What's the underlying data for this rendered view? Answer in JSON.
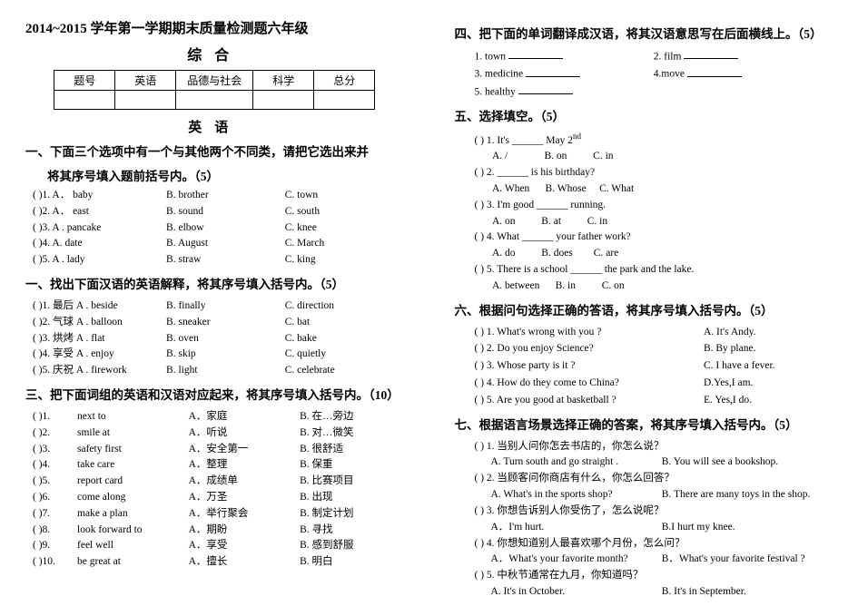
{
  "header": {
    "main_title": "2014~2015 学年第一学期期末质量检测题六年级",
    "subtitle": "综合",
    "english_title": "英语"
  },
  "score_table": {
    "headers": [
      "题号",
      "英语",
      "品德与社会",
      "科学",
      "总分"
    ]
  },
  "sec1": {
    "head_line1": "一、下面三个选项中有一个与其他两个不同类，请把它选出来并",
    "head_line2": "将其序号填入题前括号内。（5）",
    "rows": [
      {
        "n": "( )1.",
        "a": "A． baby",
        "b": "B. brother",
        "c": "C. town"
      },
      {
        "n": "( )2.",
        "a": "A． east",
        "b": "B. sound",
        "c": "C. south"
      },
      {
        "n": "( )3.",
        "a": "A . pancake",
        "b": "B. elbow",
        "c": "C. knee"
      },
      {
        "n": "( )4.",
        "a": "A. date",
        "b": "B. August",
        "c": "C. March"
      },
      {
        "n": "( )5.",
        "a": "A . lady",
        "b": "B. straw",
        "c": "C. king"
      }
    ]
  },
  "sec2": {
    "head": "一、找出下面汉语的英语解释，将其序号填入括号内。（5）",
    "rows": [
      {
        "n": "( )1.",
        "zh": "最后",
        "a": "A . beside",
        "b": "B. finally",
        "c": "C. direction"
      },
      {
        "n": "( )2.",
        "zh": "气球",
        "a": "A . balloon",
        "b": "B. sneaker",
        "c": "C. bat"
      },
      {
        "n": "( )3.",
        "zh": "烘烤",
        "a": "A . flat",
        "b": "B. oven",
        "c": "C. bake"
      },
      {
        "n": "( )4.",
        "zh": "享受",
        "a": "A . enjoy",
        "b": "B. skip",
        "c": "C. quietly"
      },
      {
        "n": "( )5.",
        "zh": "庆祝",
        "a": "A . firework",
        "b": "B. light",
        "c": "C. celebrate"
      }
    ]
  },
  "sec3": {
    "head": "三、把下面词组的英语和汉语对应起来，将其序号填入括号内。（10）",
    "rows": [
      {
        "n": "( )1.",
        "en": "next to",
        "a": "A．家庭",
        "b": "B. 在…旁边"
      },
      {
        "n": "( )2.",
        "en": "smile at",
        "a": "A．听说",
        "b": "B. 对…微笑"
      },
      {
        "n": "( )3.",
        "en": "safety first",
        "a": "A．安全第一",
        "b": "B. 很舒适"
      },
      {
        "n": "( )4.",
        "en": "take care",
        "a": "A．整理",
        "b": "B. 保重"
      },
      {
        "n": "( )5.",
        "en": "report  card",
        "a": "A．成绩单",
        "b": "B. 比赛项目"
      },
      {
        "n": "( )6.",
        "en": "come along",
        "a": "A．万圣",
        "b": "B. 出现"
      },
      {
        "n": "( )7.",
        "en": "make  a  plan",
        "a": "A．举行聚会",
        "b": "B. 制定计划"
      },
      {
        "n": "( )8.",
        "en": "look forward to",
        "a": "A．期盼",
        "b": "B. 寻找"
      },
      {
        "n": "( )9.",
        "en": "feel  well",
        "a": "A．享受",
        "b": "B. 感到舒服"
      },
      {
        "n": "( )10.",
        "en": "be great at",
        "a": "A．擅长",
        "b": "B. 明白"
      }
    ]
  },
  "sec4": {
    "head": "四、把下面的单词翻译成汉语，将其汉语意思写在后面横线上。（5）",
    "rows": [
      {
        "l": "1. town",
        "r": "2. film"
      },
      {
        "l": "3. medicine",
        "r": "4.move"
      },
      {
        "l": "5. healthy",
        "r": ""
      }
    ]
  },
  "sec5": {
    "head": "五、选择填空。（5）",
    "items": [
      {
        "q": "(    ) 1. It's ______ May 2",
        "sup": "nd",
        "opts": "       A. /              B. on          C. in"
      },
      {
        "q": "(    ) 2. ______ is his birthday?",
        "opts": "       A. When      B. Whose     C. What"
      },
      {
        "q": "(    ) 3. I'm good ______ running.",
        "opts": "       A. on          B. at          C. in"
      },
      {
        "q": "(    ) 4. What ______ your father work?",
        "opts": "       A. do          B. does        C. are"
      },
      {
        "q": "(    ) 5. There is a school ______ the park and the lake.",
        "opts": "       A. between      B. in          C. on"
      }
    ]
  },
  "sec6": {
    "head": "六、根据问句选择正确的答语，将其序号填入括号内。（5）",
    "rows": [
      {
        "q": "(    ) 1. What's  wrong with you ?",
        "a": "A. It's Andy."
      },
      {
        "q": "(    ) 2. Do you enjoy Science?",
        "a": "B. By plane."
      },
      {
        "q": "(    ) 3. Whose party is it ?",
        "a": "C. I have a fever."
      },
      {
        "q": "(    ) 4. How do they come to China?",
        "a": "D.Yes,I am."
      },
      {
        "q": "(    ) 5. Are you good at basketball ?",
        "a": "E. Yes,I do."
      }
    ]
  },
  "sec7": {
    "head": "七、根据语言场景选择正确的答案，将其序号填入括号内。（5）",
    "items": [
      {
        "p": "(    ) 1. 当别人问你怎去书店的，你怎么说？",
        "a": "A. Turn south and go straight .",
        "b": "B. You will see a bookshop."
      },
      {
        "p": "(    ) 2. 当顾客问你商店有什么，你怎么回答？",
        "a": "A. What's in the sports shop?",
        "b": "B. There are many toys in the shop."
      },
      {
        "p": "(    ) 3. 你想告诉别人你受伤了，怎么说呢？",
        "a": "A．I'm hurt.",
        "b": "B.I hurt my knee."
      },
      {
        "p": "(    ) 4. 你想知道别人最喜欢哪个月份，怎么问？",
        "a": "A．What's your favorite month?",
        "b": "B．What's your favorite festival ?"
      },
      {
        "p": "(    ) 5. 中秋节通常在九月，你知道吗？",
        "a": "A. It's in October.",
        "b": "B. It's in September."
      }
    ]
  }
}
